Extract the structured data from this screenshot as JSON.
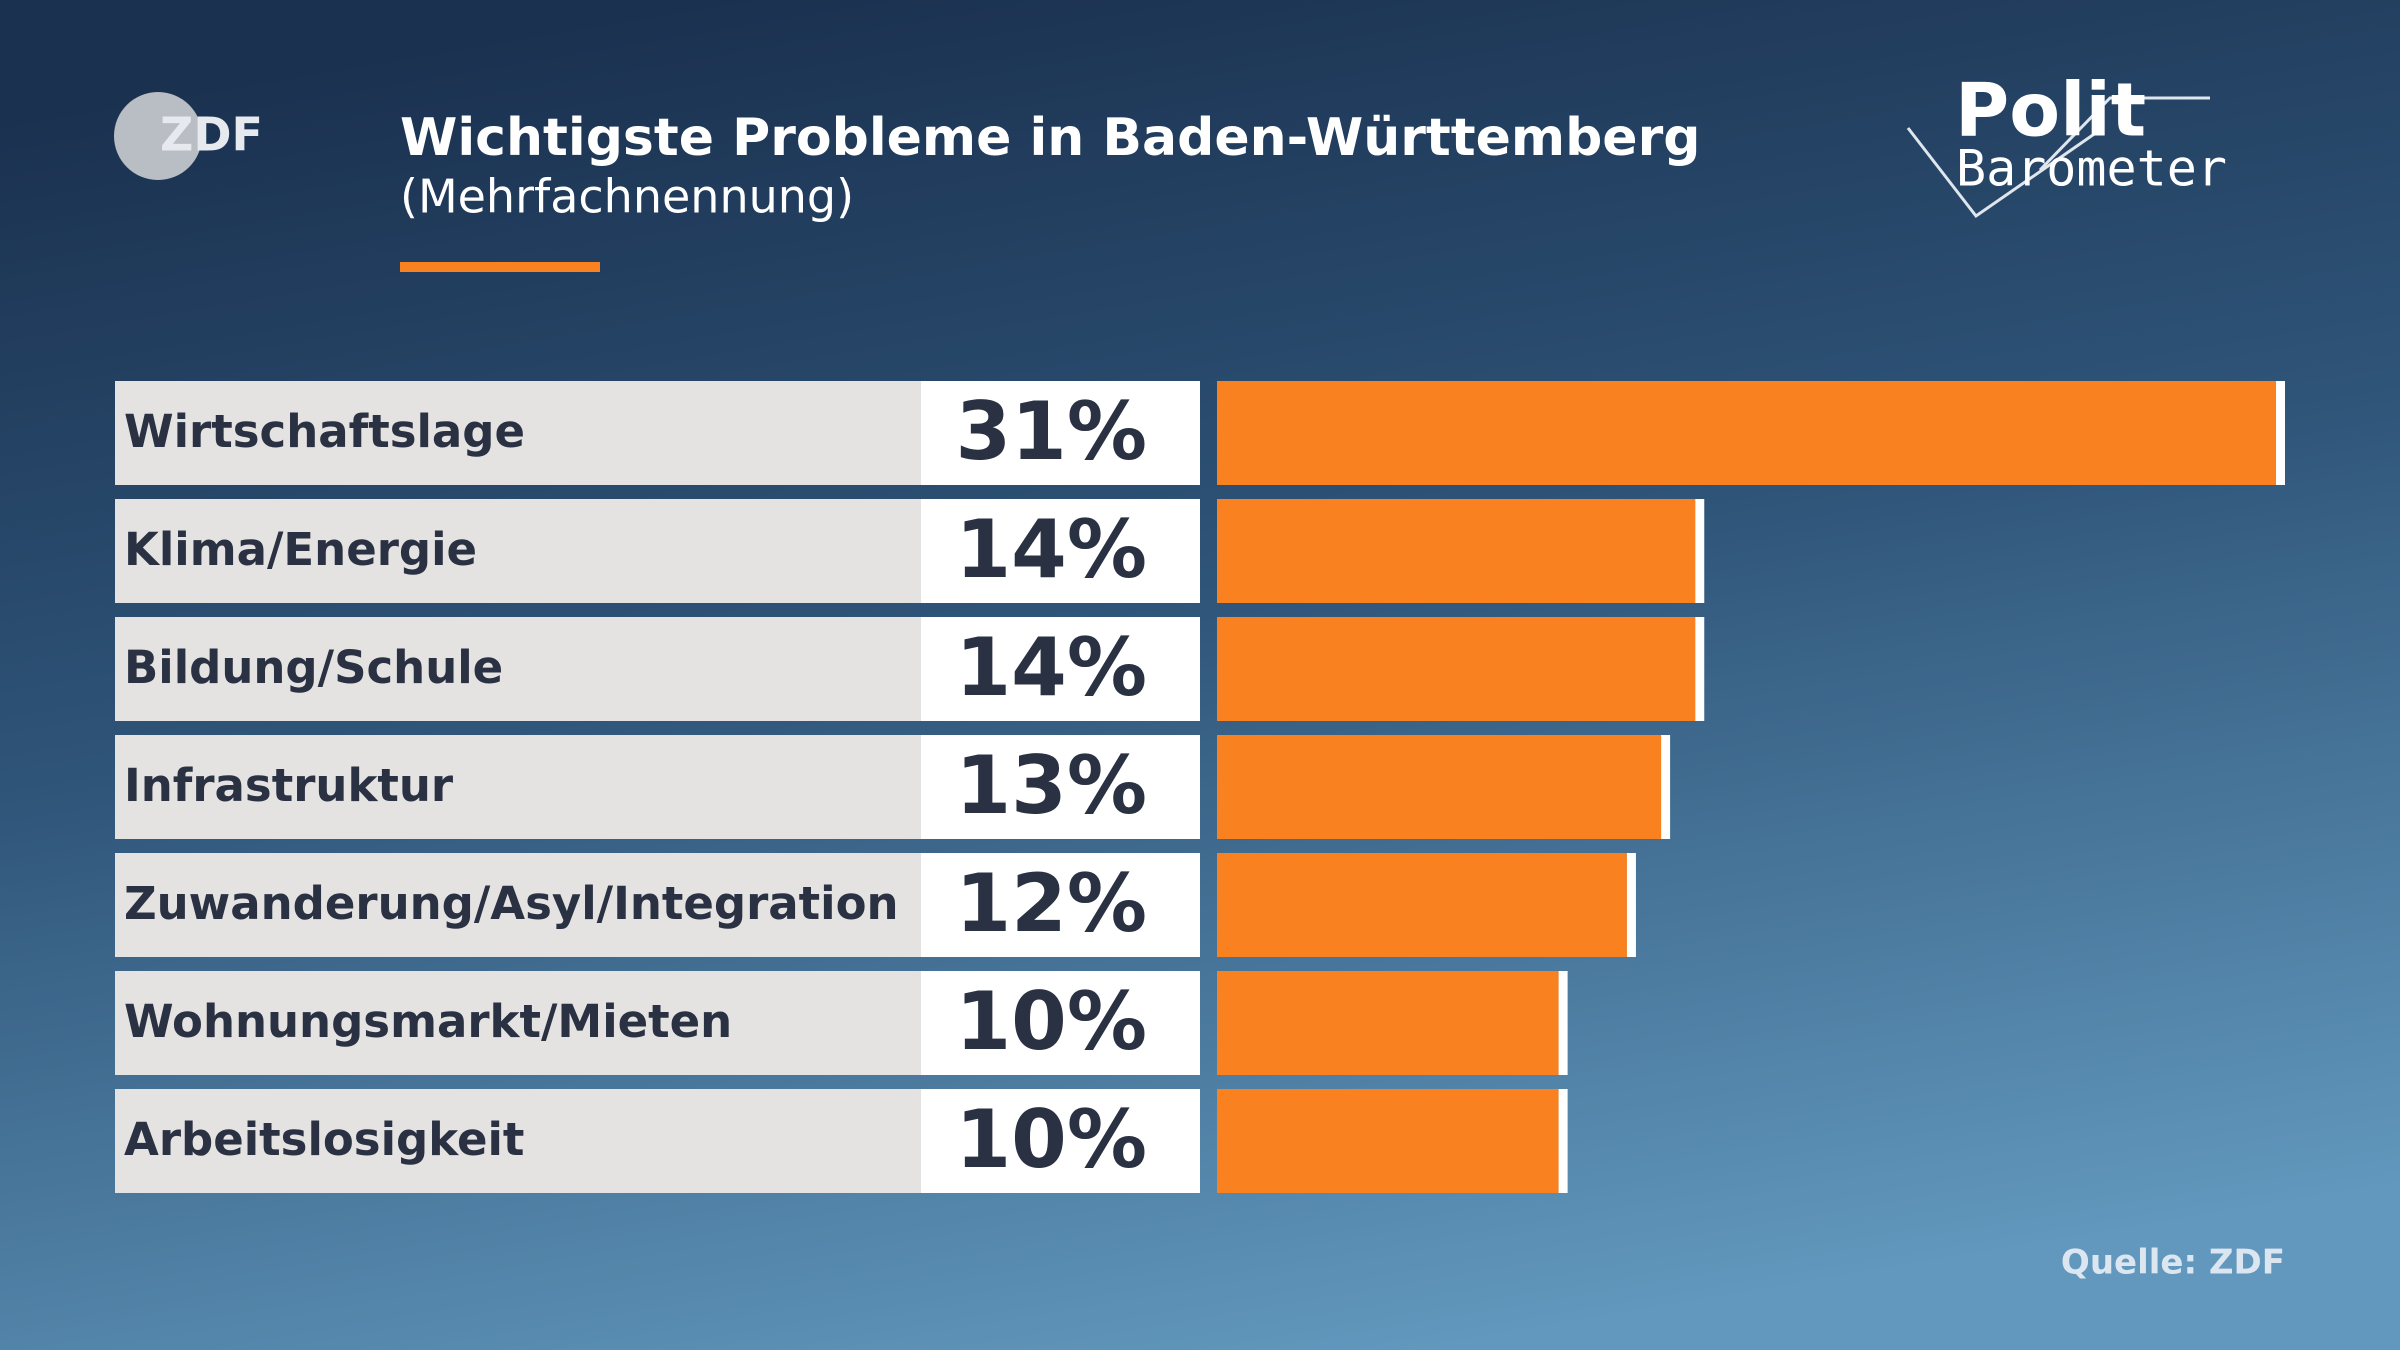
{
  "header": {
    "logo": "ZDF",
    "brand_top": "Polit",
    "brand_bottom": "Barometer"
  },
  "chart_data": {
    "type": "bar",
    "orientation": "horizontal",
    "title": "Wichtigste Probleme in Baden-Württemberg",
    "subtitle": "(Mehrfachnennung)",
    "categories": [
      "Wirtschaftslage",
      "Klima/Energie",
      "Bildung/Schule",
      "Infrastruktur",
      "Zuwanderung/Asyl/Integration",
      "Wohnungsmarkt/Mieten",
      "Arbeitslosigkeit"
    ],
    "values": [
      31,
      14,
      14,
      13,
      12,
      10,
      10
    ],
    "value_labels": [
      "31%",
      "14%",
      "14%",
      "13%",
      "12%",
      "10%",
      "10%"
    ],
    "color": "#f98120",
    "source": "Quelle: ZDF"
  }
}
